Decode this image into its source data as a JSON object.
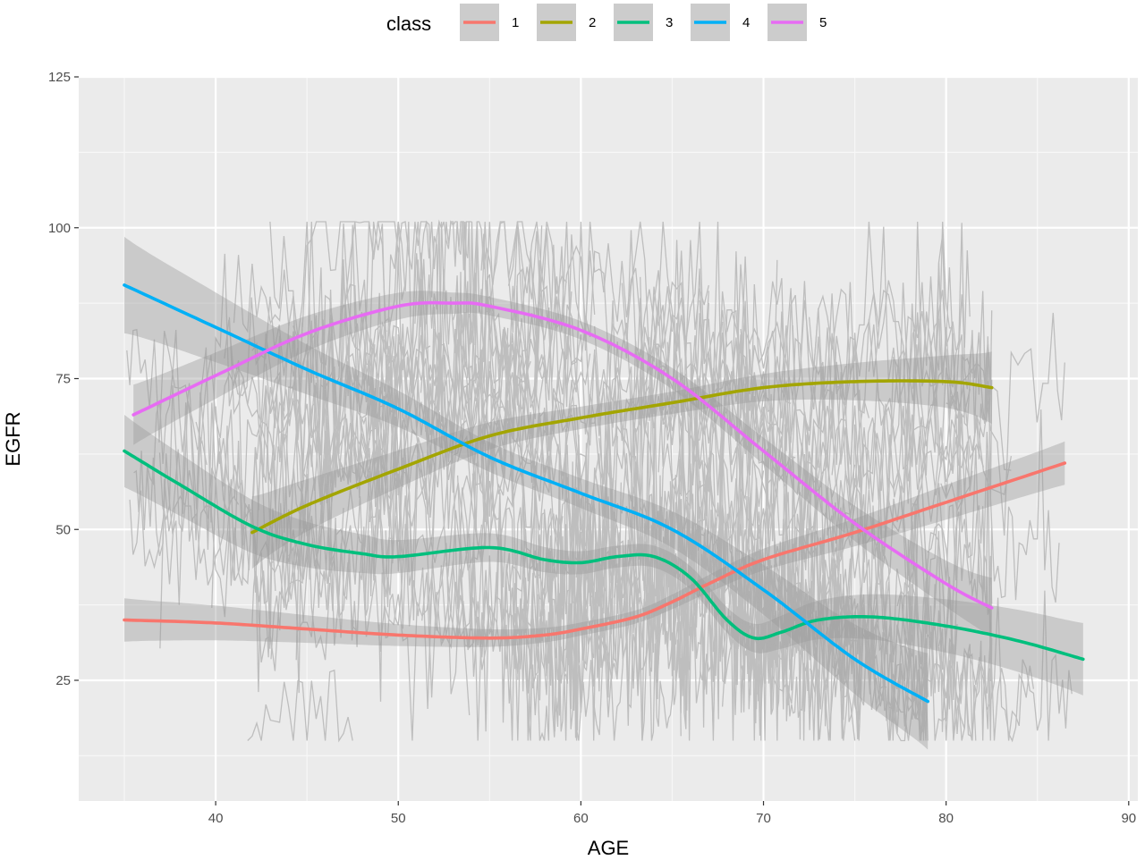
{
  "chart_data": {
    "type": "line",
    "title": "",
    "xlabel": "AGE",
    "ylabel": "EGFR",
    "xlim": [
      32.5,
      90.5
    ],
    "ylim": [
      5,
      125
    ],
    "x_ticks": [
      40,
      50,
      60,
      70,
      80,
      90
    ],
    "y_ticks": [
      25,
      50,
      75,
      100,
      125
    ],
    "grid": true,
    "background": "#ebebeb",
    "legend": {
      "title": "class",
      "position": "top"
    },
    "series": [
      {
        "name": "1",
        "color": "#f8766d",
        "x": [
          35,
          40,
          45,
          50,
          55,
          58,
          60,
          63,
          65,
          67,
          70,
          75,
          80,
          86.5
        ],
        "values": [
          35,
          34.5,
          33.5,
          32.5,
          32,
          32.5,
          33.5,
          35.5,
          38,
          41,
          45,
          49.5,
          54.5,
          61
        ],
        "band": 1.8
      },
      {
        "name": "2",
        "color": "#a3a500",
        "x": [
          42,
          45,
          50,
          55,
          60,
          65,
          70,
          75,
          80,
          82.5
        ],
        "values": [
          49.5,
          54,
          60,
          65.5,
          68.5,
          71,
          73.5,
          74.5,
          74.5,
          73.5
        ],
        "band": 3
      },
      {
        "name": "3",
        "color": "#00bf7d",
        "x": [
          35,
          38,
          42,
          45,
          48,
          50,
          55,
          58,
          60,
          62,
          64,
          66,
          68,
          69.5,
          71,
          73,
          76,
          80,
          84,
          87.5
        ],
        "values": [
          63,
          57.5,
          50.5,
          47.5,
          46,
          45.5,
          47,
          45,
          44.5,
          45.5,
          45.5,
          42,
          35,
          32,
          33,
          35,
          35.5,
          34,
          31.5,
          28.5
        ],
        "band": 3
      },
      {
        "name": "4",
        "color": "#00b0f6",
        "x": [
          35,
          40,
          45,
          50,
          55,
          60,
          65,
          70,
          75,
          79
        ],
        "values": [
          90.5,
          83.5,
          76.5,
          70,
          62,
          56,
          50,
          40,
          28.5,
          21.5
        ],
        "band": 4
      },
      {
        "name": "5",
        "color": "#e76bf3",
        "x": [
          35.5,
          40,
          45,
          50,
          53,
          55,
          60,
          65,
          70,
          75,
          80,
          82.5
        ],
        "values": [
          69,
          75.5,
          82.5,
          87,
          87.5,
          87,
          83,
          75,
          63,
          51,
          41,
          37
        ],
        "band": 2.5
      }
    ]
  }
}
